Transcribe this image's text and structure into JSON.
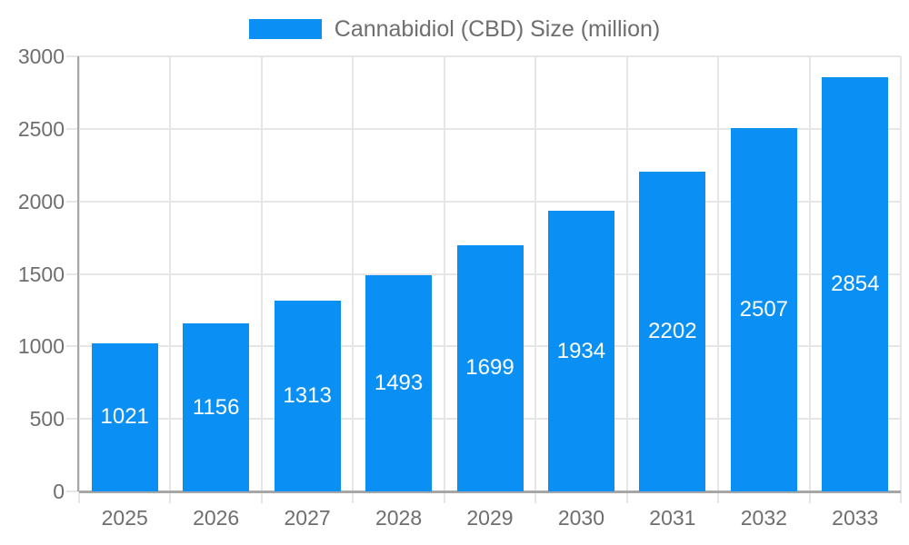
{
  "legend": {
    "label": "Cannabidiol (CBD) Size (million)"
  },
  "colors": {
    "bar": "#0a90f4",
    "grid": "#e6e6e6",
    "axis": "#a6a6a6",
    "tick_text": "#6e6e6e",
    "legend_text": "#6e6e6e",
    "value_text": "#ffffff",
    "background": "#ffffff"
  },
  "chart_data": {
    "type": "bar",
    "title": "",
    "legend": "Cannabidiol (CBD) Size (million)",
    "categories": [
      "2025",
      "2026",
      "2027",
      "2028",
      "2029",
      "2030",
      "2031",
      "2032",
      "2033"
    ],
    "values": [
      1021,
      1156,
      1313,
      1493,
      1699,
      1934,
      2202,
      2507,
      2854
    ],
    "value_labels": [
      "1021",
      "1156",
      "1313",
      "1493",
      "1699",
      "1934",
      "2202",
      "2507",
      "2854"
    ],
    "xlabel": "",
    "ylabel": "",
    "ylim": [
      0,
      3000
    ],
    "y_ticks": [
      0,
      500,
      1000,
      1500,
      2000,
      2500,
      3000
    ],
    "grid": true,
    "legend_position": "top-center",
    "value_label_position": "inside-center"
  }
}
